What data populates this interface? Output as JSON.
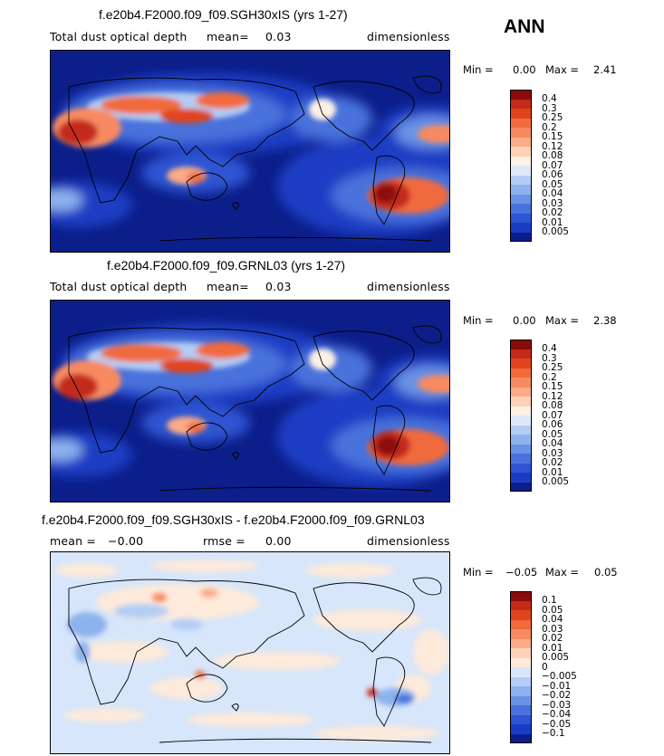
{
  "season": "ANN",
  "panels": [
    {
      "title": "f.e20b4.F2000.f09_f09.SGH30xIS (yrs 1-27)",
      "left_label": "Total dust optical depth",
      "stat1_label": "mean=",
      "stat1_value": "0.03",
      "stat2_label": "",
      "stat2_value": "",
      "units": "dimensionless",
      "min_label": "Min =",
      "min_value": "0.00",
      "max_label": "Max =",
      "max_value": "2.41",
      "colorbar": {
        "labels": [
          "0.4",
          "0.3",
          "0.25",
          "0.2",
          "0.15",
          "0.12",
          "0.08",
          "0.07",
          "0.06",
          "0.05",
          "0.04",
          "0.03",
          "0.02",
          "0.01",
          "0.005"
        ],
        "colors": [
          "#8b0a0a",
          "#c42a1a",
          "#e0441f",
          "#f06a3c",
          "#f78a60",
          "#fbab88",
          "#fdd2b8",
          "#fdf0e4",
          "#dde8fa",
          "#b4cdf4",
          "#8eb2ee",
          "#6a93e6",
          "#4a72dc",
          "#2e54d2",
          "#1a3cc4",
          "#0c1e8a"
        ]
      }
    },
    {
      "title": "f.e20b4.F2000.f09_f09.GRNL03 (yrs 1-27)",
      "left_label": "Total dust optical depth",
      "stat1_label": "mean=",
      "stat1_value": "0.03",
      "stat2_label": "",
      "stat2_value": "",
      "units": "dimensionless",
      "min_label": "Min =",
      "min_value": "0.00",
      "max_label": "Max =",
      "max_value": "2.38",
      "colorbar": {
        "labels": [
          "0.4",
          "0.3",
          "0.25",
          "0.2",
          "0.15",
          "0.12",
          "0.08",
          "0.07",
          "0.06",
          "0.05",
          "0.04",
          "0.03",
          "0.02",
          "0.01",
          "0.005"
        ],
        "colors": [
          "#8b0a0a",
          "#c42a1a",
          "#e0441f",
          "#f06a3c",
          "#f78a60",
          "#fbab88",
          "#fdd2b8",
          "#fdf0e4",
          "#dde8fa",
          "#b4cdf4",
          "#8eb2ee",
          "#6a93e6",
          "#4a72dc",
          "#2e54d2",
          "#1a3cc4",
          "#0c1e8a"
        ]
      }
    },
    {
      "title": "f.e20b4.F2000.f09_f09.SGH30xIS - f.e20b4.F2000.f09_f09.GRNL03",
      "left_label": "",
      "stat1_label": "mean =",
      "stat1_value": "−0.00",
      "stat2_label": "rmse =",
      "stat2_value": "0.00",
      "units": "dimensionless",
      "min_label": "Min =",
      "min_value": "−0.05",
      "max_label": "Max =",
      "max_value": "0.05",
      "colorbar": {
        "labels": [
          "0.1",
          "0.05",
          "0.04",
          "0.03",
          "0.02",
          "0.01",
          "0.005",
          "0",
          "−0.005",
          "−0.01",
          "−0.02",
          "−0.03",
          "−0.04",
          "−0.05",
          "−0.1"
        ],
        "colors": [
          "#8b0a0a",
          "#c42a1a",
          "#e0441f",
          "#f06a3c",
          "#f78a60",
          "#fbab88",
          "#fdd2b8",
          "#fdeadb",
          "#d7e6fa",
          "#b4cdf4",
          "#8eb2ee",
          "#6a93e6",
          "#4a72dc",
          "#2e54d2",
          "#1a3cc4",
          "#0c1e8a"
        ]
      }
    }
  ]
}
